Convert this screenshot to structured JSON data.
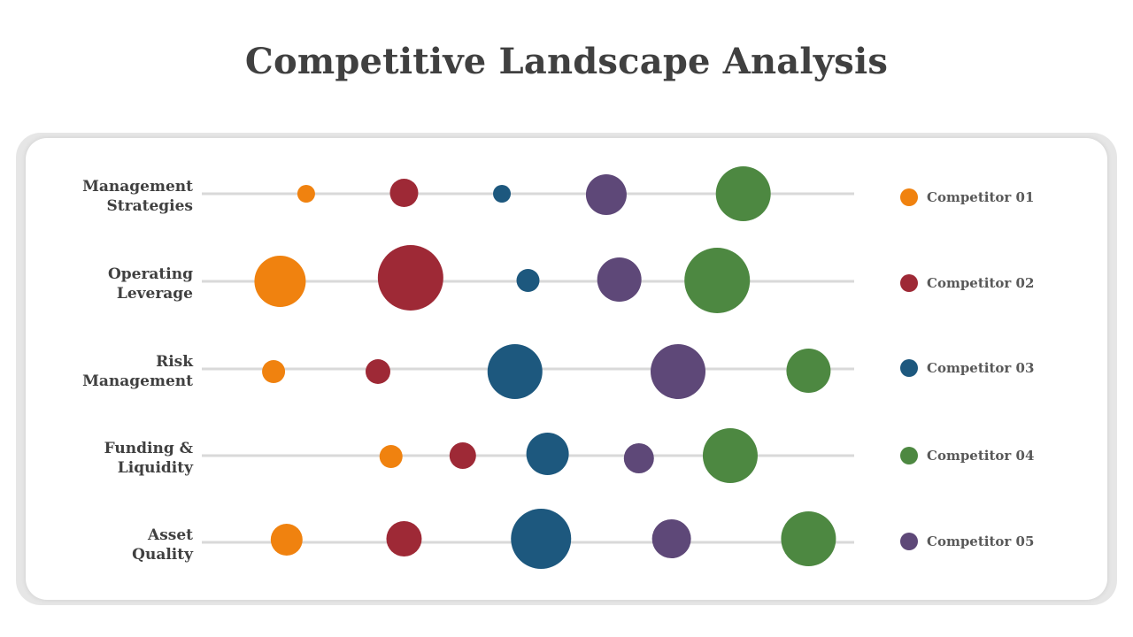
{
  "title": "Competitive Landscape Analysis",
  "chart_data": {
    "type": "scatter",
    "title": "Competitive Landscape Analysis",
    "categories": [
      {
        "lines": [
          "Management",
          "Strategies"
        ]
      },
      {
        "lines": [
          "Operating",
          "Leverage"
        ]
      },
      {
        "lines": [
          "Risk",
          "Management"
        ]
      },
      {
        "lines": [
          "Funding &",
          "Liquidity"
        ]
      },
      {
        "lines": [
          "Asset",
          "Quality"
        ]
      }
    ],
    "series": [
      {
        "name": "Competitor 01",
        "color": "#f0820f",
        "points": [
          {
            "x": 16,
            "size": 10
          },
          {
            "x": 12,
            "size": 29
          },
          {
            "x": 11,
            "size": 13
          },
          {
            "x": 29,
            "size": 13
          },
          {
            "x": 13,
            "size": 18
          }
        ]
      },
      {
        "name": "Competitor 02",
        "color": "#9e2936",
        "points": [
          {
            "x": 31,
            "size": 16
          },
          {
            "x": 32,
            "size": 37
          },
          {
            "x": 27,
            "size": 14
          },
          {
            "x": 40,
            "size": 15
          },
          {
            "x": 31,
            "size": 20
          }
        ]
      },
      {
        "name": "Competitor 03",
        "color": "#1d587e",
        "points": [
          {
            "x": 46,
            "size": 10
          },
          {
            "x": 50,
            "size": 13
          },
          {
            "x": 48,
            "size": 31
          },
          {
            "x": 53,
            "size": 24
          },
          {
            "x": 52,
            "size": 34
          }
        ]
      },
      {
        "name": "Competitor 04",
        "color": "#4d8841",
        "points": [
          {
            "x": 83,
            "size": 31
          },
          {
            "x": 79,
            "size": 37
          },
          {
            "x": 93,
            "size": 25
          },
          {
            "x": 81,
            "size": 31
          },
          {
            "x": 93,
            "size": 31
          }
        ]
      },
      {
        "name": "Competitor 05",
        "color": "#5e4878",
        "points": [
          {
            "x": 62,
            "size": 23
          },
          {
            "x": 64,
            "size": 25
          },
          {
            "x": 73,
            "size": 31
          },
          {
            "x": 67,
            "size": 17
          },
          {
            "x": 72,
            "size": 22
          }
        ]
      }
    ],
    "grid": false,
    "legend_position": "right"
  },
  "legend_order": [
    0,
    1,
    2,
    3,
    4
  ]
}
